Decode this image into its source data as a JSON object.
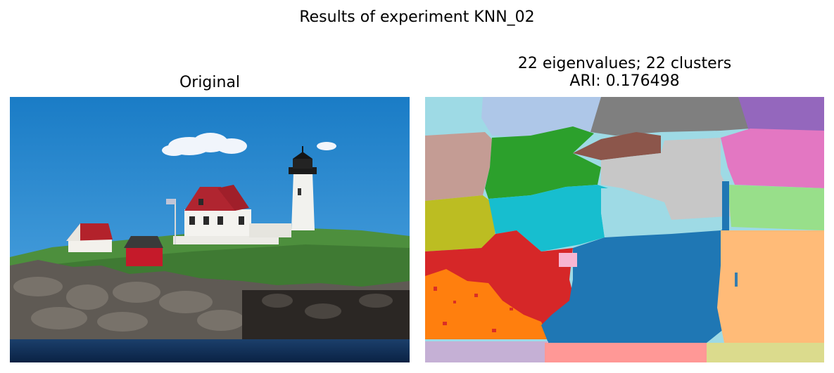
{
  "figure": {
    "suptitle": "Results of experiment KNN_02",
    "panels": [
      {
        "title": "Original"
      },
      {
        "title_line1": "22 eigenvalues; 22 clusters",
        "title_line2": "ARI: 0.176498"
      }
    ]
  },
  "colors": {
    "sky": "#2f8fd6",
    "grass": "#4a8a3a",
    "rock": "#5b5650",
    "water": "#0d2f5a",
    "seg_blue": "#1f77b4",
    "seg_orange": "#ff7f0e",
    "seg_green": "#2ca02c",
    "seg_red": "#d62728",
    "seg_purple": "#9467bd",
    "seg_brown": "#8c564b",
    "seg_pink": "#e377c2",
    "seg_gray": "#7f7f7f",
    "seg_olive": "#bcbd22",
    "seg_cyan": "#17becf",
    "seg_light_blue": "#aec7e8",
    "seg_light_orange": "#ffbb78",
    "seg_light_green": "#98df8a",
    "seg_light_red": "#ff9896",
    "seg_light_purple": "#c5b0d5",
    "seg_tan": "#c49c94",
    "seg_light_pink": "#f7b6d2",
    "seg_light_gray": "#c7c7c7",
    "seg_light_olive": "#dbdb8d",
    "seg_light_cyan": "#9edae5"
  }
}
